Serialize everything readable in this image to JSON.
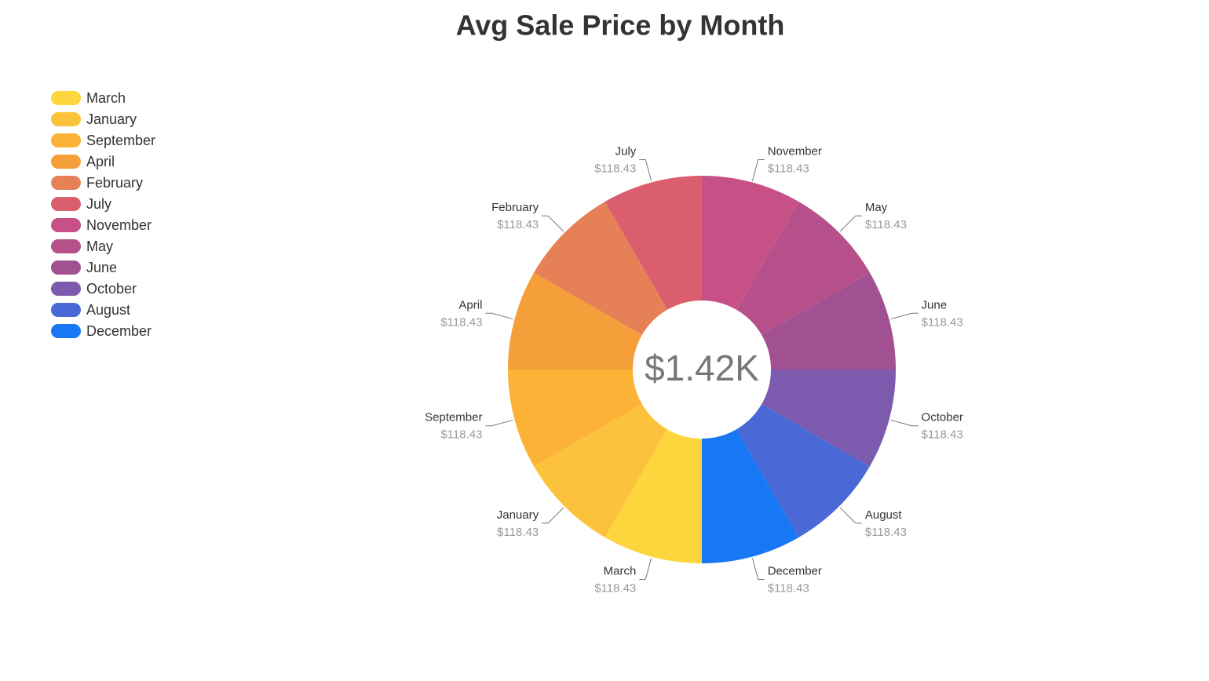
{
  "chart_data": {
    "type": "pie",
    "title": "Avg Sale Price by Month",
    "center_label": "$1.42K",
    "categories": [
      "March",
      "January",
      "September",
      "April",
      "February",
      "July",
      "November",
      "May",
      "June",
      "October",
      "August",
      "December"
    ],
    "values": [
      118.43,
      118.43,
      118.43,
      118.43,
      118.43,
      118.43,
      118.43,
      118.43,
      118.43,
      118.43,
      118.43,
      118.43
    ],
    "value_labels": [
      "$118.43",
      "$118.43",
      "$118.43",
      "$118.43",
      "$118.43",
      "$118.43",
      "$118.43",
      "$118.43",
      "$118.43",
      "$118.43",
      "$118.43",
      "$118.43"
    ],
    "colors": [
      "#fdd63d",
      "#fdc23b",
      "#fbb237",
      "#f59f3a",
      "#e68057",
      "#db5e6f",
      "#c75087",
      "#b5508a",
      "#a15091",
      "#7c5aad",
      "#4a68d6",
      "#1877f2"
    ],
    "legend": "left"
  }
}
